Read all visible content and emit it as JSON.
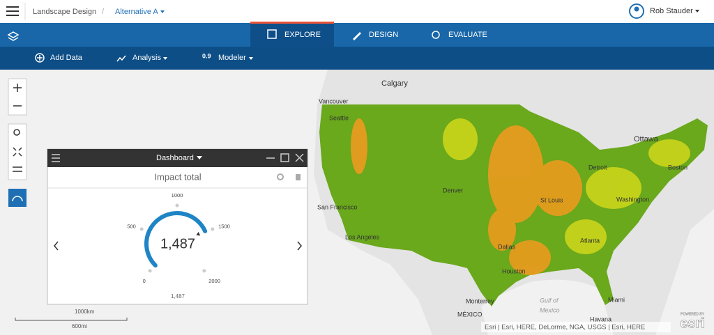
{
  "header": {
    "breadcrumb": [
      "Landscape Design",
      "Alternative A"
    ],
    "user": "Rob Stauder"
  },
  "tabs": [
    "EXPLORE",
    "DESIGN",
    "EVALUATE"
  ],
  "toolbar": {
    "items": [
      "Add Data",
      "Analysis",
      "Modeler"
    ],
    "modeler_icon": "0.9"
  },
  "map": {
    "labels": [
      "Calgary",
      "Vancouver",
      "Seattle",
      "Ottawa",
      "Boston",
      "Detroit",
      "Denver",
      "St Louis",
      "Washington",
      "San Francisco",
      "Los Angeles",
      "Atlanta",
      "Dallas",
      "Houston",
      "Monterrey",
      "Gulf of",
      "Mexico",
      "MÉXICO",
      "Miami",
      "Havana"
    ]
  },
  "dashboard": {
    "title": "Dashboard",
    "widget_title": "Impact total",
    "gauge": {
      "value": 1487,
      "label": "1,487",
      "ticks": [
        0,
        500,
        1000,
        1500,
        2000
      ]
    }
  },
  "scale": {
    "km": "1000km",
    "mi": "600mi"
  },
  "attribution": "Esri | Esri, HERE, DeLorme, NGA, USGS | Esri, HERE",
  "logo": {
    "powered": "POWERED BY",
    "brand": "esri"
  }
}
